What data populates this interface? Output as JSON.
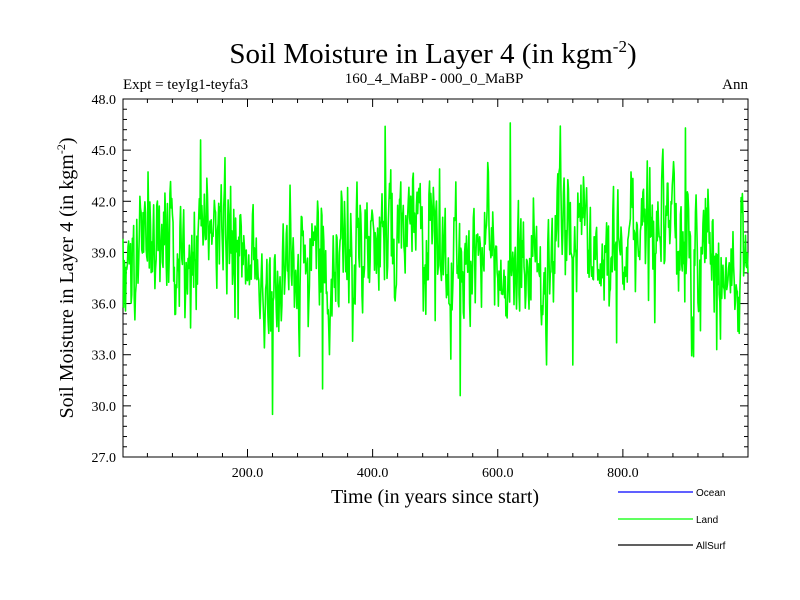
{
  "chart_data": {
    "type": "line",
    "title": "Soil Moisture in Layer 4 (in kgm",
    "title_sup": "-2",
    "title_close": ")",
    "subtitle_left": "Expt = teyIg1-teyfa3",
    "subtitle_center": "160_4_MaBP - 000_0_MaBP",
    "subtitle_right": "Ann",
    "xlabel": "Time (in years since start)",
    "ylabel": "Soil Moisture in Layer 4 (in kgm",
    "ylabel_sup": "-2",
    "ylabel_close": ")",
    "xlim": [
      1,
      1000
    ],
    "ylim": [
      27.0,
      48.0
    ],
    "xticks": [
      200,
      400,
      600,
      800
    ],
    "xtick_labels": [
      "200.0",
      "400.0",
      "600.0",
      "800.0"
    ],
    "yticks": [
      27,
      30,
      33,
      36,
      39,
      42,
      45,
      48
    ],
    "ytick_labels": [
      "27.0",
      "30.0",
      "33.0",
      "36.0",
      "39.0",
      "42.0",
      "45.0",
      "48.0"
    ],
    "series": [
      {
        "name": "Ocean",
        "color": "#0000ff",
        "values": []
      },
      {
        "name": "Land",
        "color": "#00ff00",
        "mean": 39.0,
        "values_note": "annual series (~1000 values) oscillating 29.5–46.6 around 39",
        "anchors": [
          [
            1,
            39.8
          ],
          [
            40,
            38.5
          ],
          [
            90,
            38.6
          ],
          [
            125,
            45.6
          ],
          [
            180,
            35.2
          ],
          [
            240,
            29.5
          ],
          [
            320,
            31.0
          ],
          [
            420,
            46.4
          ],
          [
            430,
            38.8
          ],
          [
            500,
            35.0
          ],
          [
            540,
            30.6
          ],
          [
            620,
            46.6
          ],
          [
            720,
            32.4
          ],
          [
            790,
            33.7
          ],
          [
            900,
            46.3
          ],
          [
            950,
            33.3
          ],
          [
            1000,
            37.8
          ]
        ]
      },
      {
        "name": "AllSurf",
        "color": "#000000",
        "values": []
      }
    ]
  }
}
